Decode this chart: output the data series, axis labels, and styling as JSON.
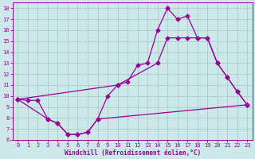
{
  "title": "",
  "xlabel": "Windchill (Refroidissement éolien,°C)",
  "background_color": "#cce8e8",
  "line_color": "#990099",
  "grid_color": "#aacccc",
  "xlim": [
    -0.5,
    23.5
  ],
  "ylim": [
    6,
    18.5
  ],
  "xticks": [
    0,
    1,
    2,
    3,
    4,
    5,
    6,
    7,
    8,
    9,
    10,
    11,
    12,
    13,
    14,
    15,
    16,
    17,
    18,
    19,
    20,
    21,
    22,
    23
  ],
  "yticks": [
    6,
    7,
    8,
    9,
    10,
    11,
    12,
    13,
    14,
    15,
    16,
    17,
    18
  ],
  "curve1_x": [
    0,
    1,
    2,
    3,
    4,
    5,
    6,
    7,
    8,
    9,
    10,
    11,
    12,
    13,
    14,
    15,
    16,
    17,
    18,
    19,
    20,
    21,
    22,
    23
  ],
  "curve1_y": [
    9.7,
    9.6,
    9.6,
    7.9,
    7.5,
    6.5,
    6.5,
    6.7,
    7.9,
    10.0,
    11.0,
    11.3,
    12.8,
    13.0,
    16.0,
    18.0,
    17.0,
    17.3,
    15.3,
    15.3,
    13.0,
    11.7,
    10.4,
    9.2
  ],
  "curve2_x": [
    0,
    3,
    4,
    5,
    6,
    7,
    8,
    23
  ],
  "curve2_y": [
    9.7,
    7.9,
    7.5,
    6.5,
    6.5,
    6.7,
    7.9,
    9.2
  ],
  "curve3_x": [
    0,
    10,
    14,
    15,
    16,
    17,
    18,
    19,
    20,
    21,
    22,
    23
  ],
  "curve3_y": [
    9.7,
    11.0,
    13.0,
    15.3,
    15.3,
    15.3,
    15.3,
    15.3,
    13.0,
    11.7,
    10.4,
    9.2
  ],
  "markersize": 2.5,
  "linewidth": 0.9,
  "tick_labelsize": 5.0,
  "xlabel_fontsize": 5.5
}
